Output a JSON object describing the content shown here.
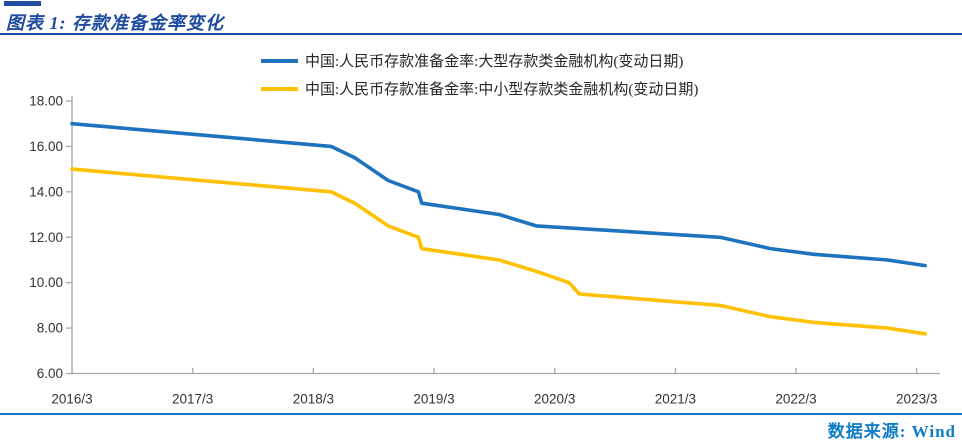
{
  "header": {
    "title": "图表 1: 存款准备金率变化"
  },
  "footer": {
    "source_label": "数据来源: Wind"
  },
  "colors": {
    "title_blue": "#1F4BA0",
    "footer_line_blue": "#1B74C6",
    "footer_text_blue": "#0F7DC6",
    "axis_gray": "#A8A8A8",
    "tick_text": "#333333"
  },
  "chart_data": {
    "type": "line",
    "title": "存款准备金率变化",
    "grid": false,
    "legend_position": "top-center",
    "x_axis": {
      "range": [
        2016.167,
        2023.36
      ],
      "tick_values": [
        2016.167,
        2017.167,
        2018.167,
        2019.167,
        2020.167,
        2021.167,
        2022.167,
        2023.167
      ],
      "tick_labels": [
        "2016/3",
        "2017/3",
        "2018/3",
        "2019/3",
        "2020/3",
        "2021/3",
        "2022/3",
        "2023/3"
      ]
    },
    "y_axis": {
      "range": [
        6,
        18
      ],
      "tick_values": [
        18,
        16,
        14,
        12,
        10,
        8,
        6
      ],
      "tick_labels": [
        "18.00",
        "16.00",
        "14.00",
        "12.00",
        "10.00",
        "8.00",
        "6.00"
      ]
    },
    "series": [
      {
        "name": "中国:人民币存款准备金率:大型存款类金融机构(变动日期)",
        "color": "#1E73BE",
        "points": [
          [
            "2016-03-01",
            17.0
          ],
          [
            "2018-04-25",
            16.0
          ],
          [
            "2018-07-05",
            15.5
          ],
          [
            "2018-10-15",
            14.5
          ],
          [
            "2019-01-15",
            14.0
          ],
          [
            "2019-01-25",
            13.5
          ],
          [
            "2019-09-16",
            13.0
          ],
          [
            "2020-01-06",
            12.5
          ],
          [
            "2021-07-15",
            12.0
          ],
          [
            "2021-12-15",
            11.5
          ],
          [
            "2022-04-25",
            11.25
          ],
          [
            "2022-12-05",
            11.0
          ],
          [
            "2023-03-27",
            10.75
          ]
        ]
      },
      {
        "name": "中国:人民币存款准备金率:中小型存款类金融机构(变动日期)",
        "color": "#FFC000",
        "points": [
          [
            "2016-03-01",
            15.0
          ],
          [
            "2018-04-25",
            14.0
          ],
          [
            "2018-07-05",
            13.5
          ],
          [
            "2018-10-15",
            12.5
          ],
          [
            "2019-01-15",
            12.0
          ],
          [
            "2019-01-25",
            11.5
          ],
          [
            "2019-09-16",
            11.0
          ],
          [
            "2020-01-06",
            10.5
          ],
          [
            "2020-04-15",
            10.0
          ],
          [
            "2020-05-15",
            9.5
          ],
          [
            "2021-07-15",
            9.0
          ],
          [
            "2021-12-15",
            8.5
          ],
          [
            "2022-04-25",
            8.25
          ],
          [
            "2022-12-05",
            8.0
          ],
          [
            "2023-03-27",
            7.75
          ]
        ]
      }
    ]
  }
}
